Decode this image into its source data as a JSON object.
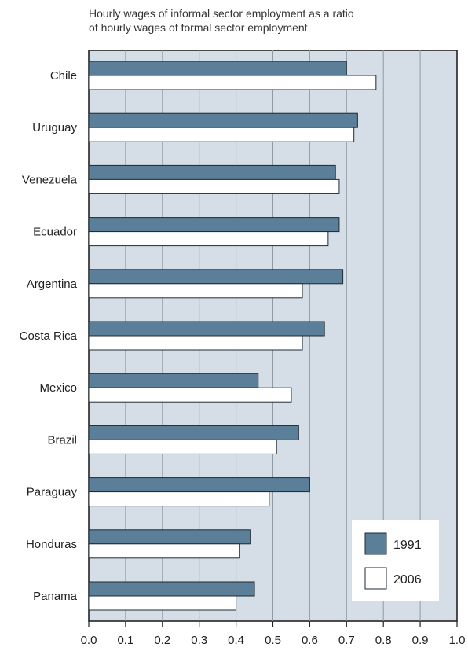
{
  "chart_data": {
    "type": "bar",
    "orientation": "horizontal",
    "title_lines": [
      "Hourly wages of informal sector employment as a ratio",
      "of hourly wages of formal sector employment"
    ],
    "categories": [
      "Chile",
      "Uruguay",
      "Venezuela",
      "Ecuador",
      "Argentina",
      "Costa Rica",
      "Mexico",
      "Brazil",
      "Paraguay",
      "Honduras",
      "Panama"
    ],
    "series": [
      {
        "name": "1991",
        "color": "#5b7f99",
        "values": [
          0.7,
          0.73,
          0.67,
          0.68,
          0.69,
          0.64,
          0.46,
          0.57,
          0.6,
          0.44,
          0.45
        ]
      },
      {
        "name": "2006",
        "color": "#ffffff",
        "values": [
          0.78,
          0.72,
          0.68,
          0.65,
          0.58,
          0.58,
          0.55,
          0.51,
          0.49,
          0.41,
          0.4
        ]
      }
    ],
    "xlim": [
      0,
      1.0
    ],
    "xticks": [
      "0.0",
      "0.1",
      "0.2",
      "0.3",
      "0.4",
      "0.5",
      "0.6",
      "0.7",
      "0.8",
      "0.9",
      "1.0"
    ],
    "grid": true,
    "legend": "bottom-right",
    "plot_background": "#d5dee6"
  }
}
